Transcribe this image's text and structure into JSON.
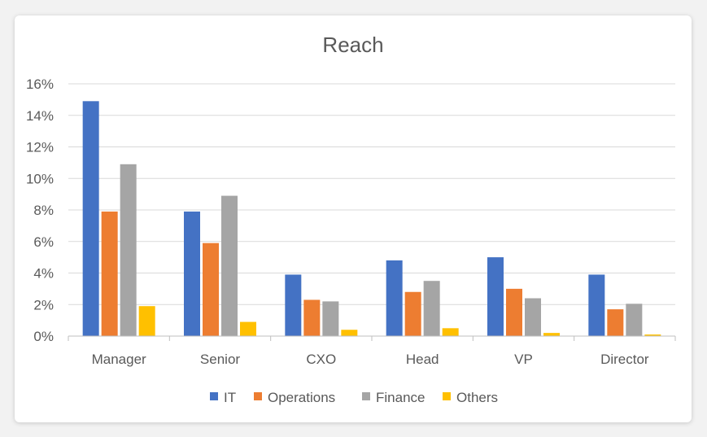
{
  "chart_data": {
    "type": "bar",
    "title": "Reach",
    "xlabel": "",
    "ylabel": "",
    "ylim": [
      0,
      16
    ],
    "yticks": [
      "0%",
      "2%",
      "4%",
      "6%",
      "8%",
      "10%",
      "12%",
      "14%",
      "16%"
    ],
    "categories": [
      "Manager",
      "Senior",
      "CXO",
      "Head",
      "VP",
      "Director"
    ],
    "series": [
      {
        "name": "IT",
        "color": "#4472c4",
        "values": [
          14.9,
          7.9,
          3.9,
          4.8,
          5.0,
          3.9
        ]
      },
      {
        "name": "Operations",
        "color": "#ed7d31",
        "values": [
          7.9,
          5.9,
          2.3,
          2.8,
          3.0,
          1.7
        ]
      },
      {
        "name": "Finance",
        "color": "#a5a5a5",
        "values": [
          10.9,
          8.9,
          2.2,
          3.5,
          2.4,
          2.05
        ]
      },
      {
        "name": "Others",
        "color": "#ffc000",
        "values": [
          1.9,
          0.9,
          0.4,
          0.5,
          0.2,
          0.1
        ]
      }
    ],
    "grid": true,
    "legend": "bottom"
  }
}
